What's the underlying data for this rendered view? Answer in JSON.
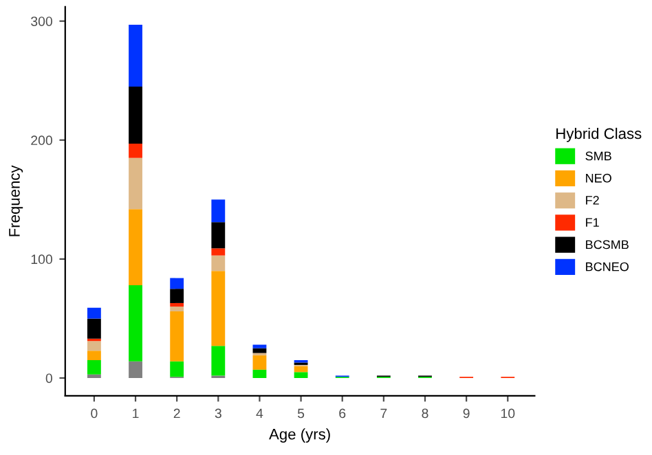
{
  "chart_data": {
    "type": "bar",
    "stacked": true,
    "xlabel": "Age (yrs)",
    "ylabel": "Frequency",
    "legend_title": "Hybrid Class",
    "legend": "right",
    "x": [
      0,
      1,
      2,
      3,
      4,
      5,
      6,
      7,
      8,
      9,
      10
    ],
    "xlim": [
      -0.7,
      10.65
    ],
    "xticks": [
      0,
      1,
      2,
      3,
      4,
      5,
      6,
      7,
      8,
      9,
      10
    ],
    "ylim": [
      -15,
      312
    ],
    "yticks": [
      0,
      100,
      200,
      300
    ],
    "grid": false,
    "series": [
      {
        "color": "#808080",
        "values": [
          3,
          14,
          1,
          2,
          0,
          0,
          0,
          0,
          0,
          0,
          0
        ]
      },
      {
        "name": "SMB",
        "color": "#00e600",
        "values": [
          12,
          64,
          13,
          25,
          7,
          5,
          1,
          1,
          1,
          0,
          0
        ]
      },
      {
        "name": "NEO",
        "color": "#ffa500",
        "values": [
          8,
          64,
          42,
          63,
          12,
          5,
          0,
          0,
          0,
          0,
          0
        ]
      },
      {
        "name": "F2",
        "color": "#deb887",
        "values": [
          8,
          43,
          4,
          13,
          2,
          1,
          0,
          0,
          0,
          0,
          0
        ]
      },
      {
        "name": "F1",
        "color": "#ff2a00",
        "values": [
          2,
          12,
          3,
          6,
          0,
          0,
          0,
          0,
          0,
          1,
          1
        ]
      },
      {
        "name": "BCSMB",
        "color": "#000000",
        "values": [
          17,
          48,
          12,
          22,
          4,
          2,
          0,
          1,
          1,
          0,
          0
        ]
      },
      {
        "name": "BCNEO",
        "color": "#0033ff",
        "values": [
          9,
          52,
          9,
          19,
          3,
          2,
          1,
          0,
          0,
          0,
          0
        ]
      }
    ]
  }
}
